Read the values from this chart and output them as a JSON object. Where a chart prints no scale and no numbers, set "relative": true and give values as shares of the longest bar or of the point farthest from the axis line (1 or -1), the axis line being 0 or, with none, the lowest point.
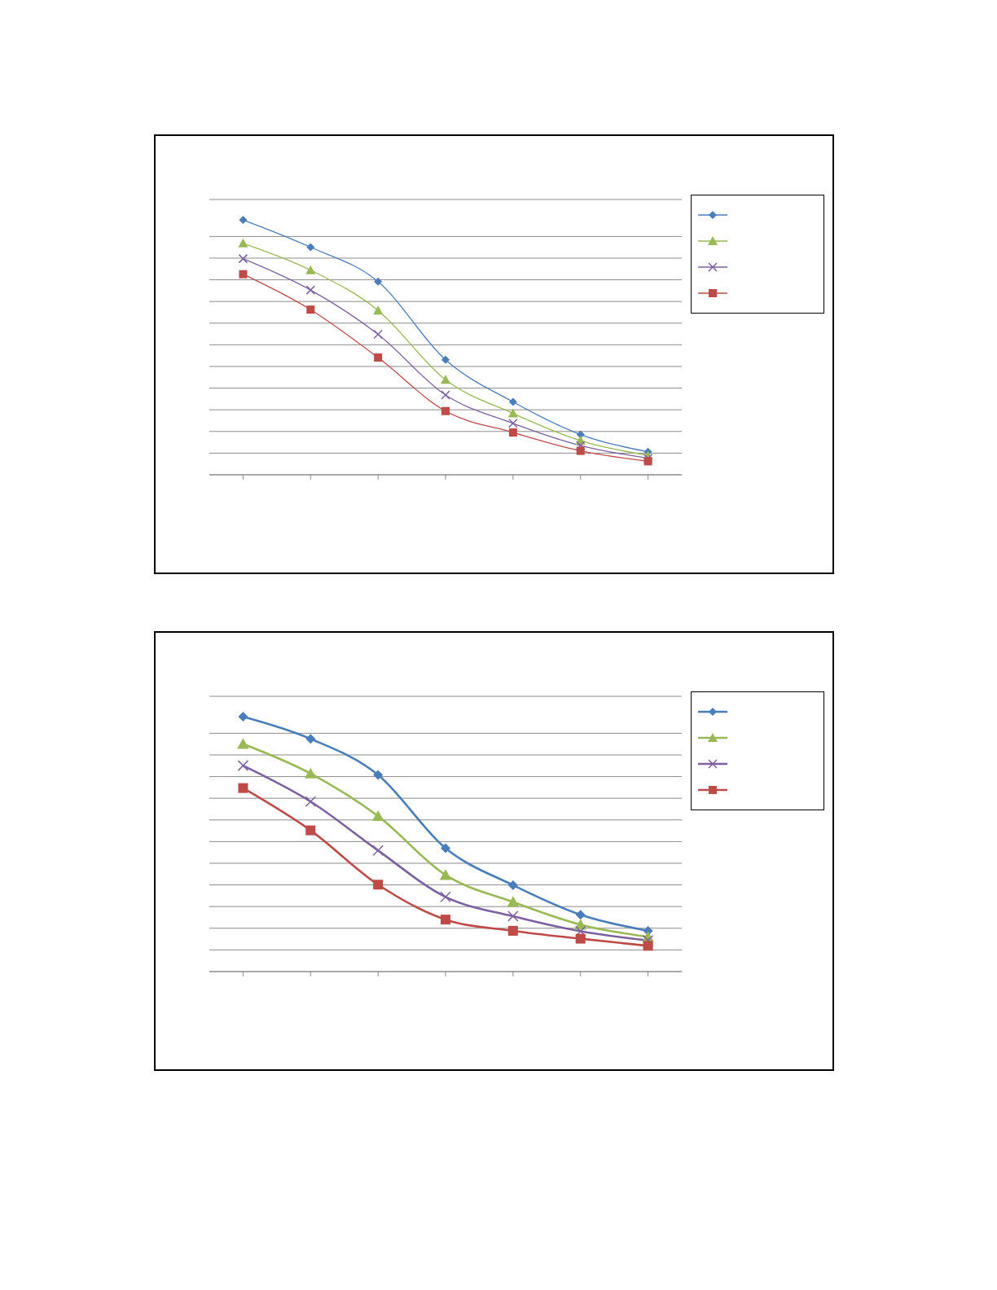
{
  "chart_data": [
    {
      "type": "line",
      "relative": true,
      "categories": [
        null,
        null,
        null,
        null,
        null,
        null,
        null
      ],
      "grid": "y",
      "series": [
        {
          "color": "#4a7ebb",
          "marker": "diamond",
          "values": [
            1,
            0.893,
            0.758,
            0.451,
            0.286,
            0.158,
            0.09
          ]
        },
        {
          "color": "#98b954",
          "marker": "triangle",
          "values": [
            0.908,
            0.803,
            0.645,
            0.373,
            0.241,
            0.134,
            0.076
          ]
        },
        {
          "color": "#7d60a0",
          "marker": "cross",
          "values": [
            0.848,
            0.725,
            0.551,
            0.313,
            0.202,
            0.115,
            0.065
          ]
        },
        {
          "color": "#be4b48",
          "marker": "square",
          "values": [
            0.787,
            0.648,
            0.46,
            0.25,
            0.166,
            0.094,
            0.053
          ]
        }
      ]
    },
    {
      "type": "line",
      "relative": true,
      "categories": [
        null,
        null,
        null,
        null,
        null,
        null,
        null
      ],
      "grid": "y",
      "series": [
        {
          "color": "#4a7ebb",
          "marker": "diamond",
          "values": [
            1,
            0.913,
            0.772,
            0.484,
            0.339,
            0.223,
            0.16
          ]
        },
        {
          "color": "#98b954",
          "marker": "triangle",
          "values": [
            0.893,
            0.777,
            0.61,
            0.379,
            0.273,
            0.184,
            0.136
          ]
        },
        {
          "color": "#7d60a0",
          "marker": "cross",
          "values": [
            0.808,
            0.667,
            0.475,
            0.293,
            0.217,
            0.158,
            0.122
          ]
        },
        {
          "color": "#be4b48",
          "marker": "square",
          "values": [
            0.72,
            0.554,
            0.341,
            0.204,
            0.16,
            0.129,
            0.101
          ]
        }
      ]
    }
  ]
}
